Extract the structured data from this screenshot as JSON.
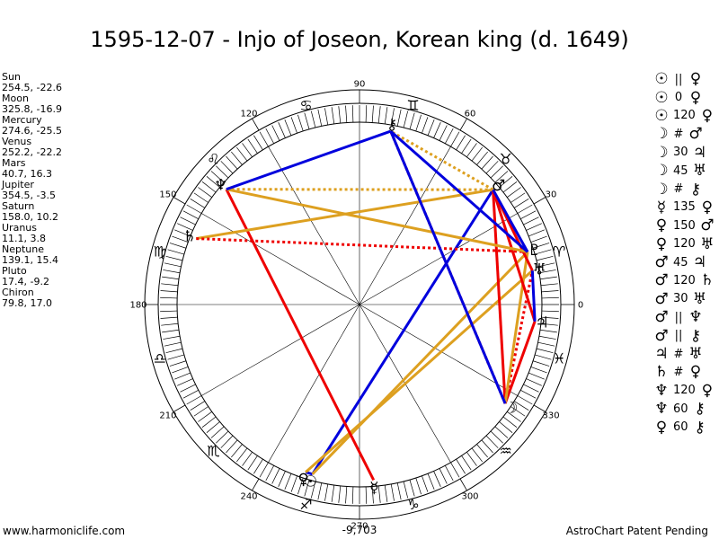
{
  "title": "1595-12-07 - Injo of Joseon, Korean king (d. 1649)",
  "footer": {
    "site": "www.harmoniclife.com",
    "patent": "AstroChart Patent Pending"
  },
  "planets": [
    {
      "name": "Sun",
      "coords": "254.5, -22.6"
    },
    {
      "name": "Moon",
      "coords": "325.8, -16.9"
    },
    {
      "name": "Mercury",
      "coords": "274.6, -25.5"
    },
    {
      "name": "Venus",
      "coords": "252.2, -22.2"
    },
    {
      "name": "Mars",
      "coords": "40.7, 16.3"
    },
    {
      "name": "Jupiter",
      "coords": "354.5, -3.5"
    },
    {
      "name": "Saturn",
      "coords": "158.0, 10.2"
    },
    {
      "name": "Uranus",
      "coords": "11.1, 3.8"
    },
    {
      "name": "Neptune",
      "coords": "139.1, 15.4"
    },
    {
      "name": "Pluto",
      "coords": "17.4, -9.2"
    },
    {
      "name": "Chiron",
      "coords": "79.8, 17.0"
    }
  ],
  "aspects": [
    {
      "p1": "☉",
      "type": "||",
      "p2": "♀"
    },
    {
      "p1": "☉",
      "type": "0",
      "p2": "♀"
    },
    {
      "p1": "☉",
      "type": "120",
      "p2": "♀"
    },
    {
      "p1": "☽",
      "type": "#",
      "p2": "♂"
    },
    {
      "p1": "☽",
      "type": "30",
      "p2": "♃"
    },
    {
      "p1": "☽",
      "type": "45",
      "p2": "♅"
    },
    {
      "p1": "☽",
      "type": "#",
      "p2": "⚷"
    },
    {
      "p1": "☿",
      "type": "135",
      "p2": "♀"
    },
    {
      "p1": "♀",
      "type": "150",
      "p2": "♂"
    },
    {
      "p1": "♀",
      "type": "120",
      "p2": "♅"
    },
    {
      "p1": "♂",
      "type": "45",
      "p2": "♃"
    },
    {
      "p1": "♂",
      "type": "120",
      "p2": "♄"
    },
    {
      "p1": "♂",
      "type": "30",
      "p2": "♅"
    },
    {
      "p1": "♂",
      "type": "||",
      "p2": "♆"
    },
    {
      "p1": "♂",
      "type": "||",
      "p2": "⚷"
    },
    {
      "p1": "♃",
      "type": "#",
      "p2": "♅"
    },
    {
      "p1": "♄",
      "type": "#",
      "p2": "♀"
    },
    {
      "p1": "♆",
      "type": "120",
      "p2": "♀"
    },
    {
      "p1": "♆",
      "type": "60",
      "p2": "⚷"
    },
    {
      "p1": "♀",
      "type": "60",
      "p2": "⚷"
    }
  ],
  "chart_data": {
    "type": "astrological-wheel",
    "bottom_value": "-9,703",
    "degree_labels": [
      "0",
      "30",
      "60",
      "90",
      "120",
      "150",
      "180",
      "210",
      "240",
      "270",
      "300",
      "330"
    ],
    "signs": [
      {
        "glyph": "♈",
        "lon": 15
      },
      {
        "glyph": "♉",
        "lon": 45
      },
      {
        "glyph": "♊",
        "lon": 75
      },
      {
        "glyph": "♋",
        "lon": 105
      },
      {
        "glyph": "♌",
        "lon": 135
      },
      {
        "glyph": "♍",
        "lon": 165
      },
      {
        "glyph": "♎",
        "lon": 195
      },
      {
        "glyph": "♏",
        "lon": 225
      },
      {
        "glyph": "♐",
        "lon": 255
      },
      {
        "glyph": "♑",
        "lon": 285
      },
      {
        "glyph": "♒",
        "lon": 315
      },
      {
        "glyph": "♓",
        "lon": 345
      }
    ],
    "bodies": [
      {
        "name": "Sun",
        "glyph": "☉",
        "lon": 254.5
      },
      {
        "name": "Moon",
        "glyph": "☽",
        "lon": 325.8
      },
      {
        "name": "Mercury",
        "glyph": "☿",
        "lon": 274.6
      },
      {
        "name": "Venus",
        "glyph": "♀",
        "lon": 252.2
      },
      {
        "name": "Mars",
        "glyph": "♂",
        "lon": 40.7
      },
      {
        "name": "Jupiter",
        "glyph": "♃",
        "lon": 354.5
      },
      {
        "name": "Saturn",
        "glyph": "♄",
        "lon": 158.0
      },
      {
        "name": "Uranus",
        "glyph": "♅",
        "lon": 11.1
      },
      {
        "name": "Neptune",
        "glyph": "♆",
        "lon": 139.1
      },
      {
        "name": "Pluto",
        "glyph": "♇",
        "lon": 17.4
      },
      {
        "name": "Chiron",
        "glyph": "⚷",
        "lon": 79.8
      }
    ],
    "aspect_lines": [
      {
        "a": "Sun",
        "b": "Venus",
        "color": "#0000dd",
        "style": "solid"
      },
      {
        "a": "Sun",
        "b": "Mars",
        "color": "#0000dd",
        "style": "solid"
      },
      {
        "a": "Sun",
        "b": "Pluto",
        "color": "#dda020",
        "style": "solid"
      },
      {
        "a": "Venus",
        "b": "Uranus",
        "color": "#dda020",
        "style": "solid"
      },
      {
        "a": "Mercury",
        "b": "Neptune",
        "color": "#ee0000",
        "style": "solid"
      },
      {
        "a": "Mars",
        "b": "Moon",
        "color": "#ee0000",
        "style": "solid"
      },
      {
        "a": "Moon",
        "b": "Jupiter",
        "color": "#ee0000",
        "style": "solid"
      },
      {
        "a": "Moon",
        "b": "Uranus",
        "color": "#ee0000",
        "style": "dotted"
      },
      {
        "a": "Moon",
        "b": "Pluto",
        "color": "#dda020",
        "style": "solid"
      },
      {
        "a": "Moon",
        "b": "Chiron",
        "color": "#ee0000",
        "style": "dotted"
      },
      {
        "a": "Mars",
        "b": "Jupiter",
        "color": "#ee0000",
        "style": "solid"
      },
      {
        "a": "Mars",
        "b": "Saturn",
        "color": "#dda020",
        "style": "solid"
      },
      {
        "a": "Mars",
        "b": "Uranus",
        "color": "#ee0000",
        "style": "solid"
      },
      {
        "a": "Mars",
        "b": "Neptune",
        "color": "#dda020",
        "style": "dotted"
      },
      {
        "a": "Mars",
        "b": "Chiron",
        "color": "#dda020",
        "style": "dotted"
      },
      {
        "a": "Mars",
        "b": "Pluto",
        "color": "#0000dd",
        "style": "solid"
      },
      {
        "a": "Jupiter",
        "b": "Uranus",
        "color": "#0000dd",
        "style": "solid"
      },
      {
        "a": "Saturn",
        "b": "Pluto",
        "color": "#ee0000",
        "style": "dotted"
      },
      {
        "a": "Neptune",
        "b": "Pluto",
        "color": "#dda020",
        "style": "solid"
      },
      {
        "a": "Neptune",
        "b": "Chiron",
        "color": "#0000dd",
        "style": "solid"
      },
      {
        "a": "Pluto",
        "b": "Chiron",
        "color": "#0000dd",
        "style": "solid"
      },
      {
        "a": "Chiron",
        "b": "Moon",
        "color": "#0000dd",
        "style": "solid"
      }
    ]
  }
}
